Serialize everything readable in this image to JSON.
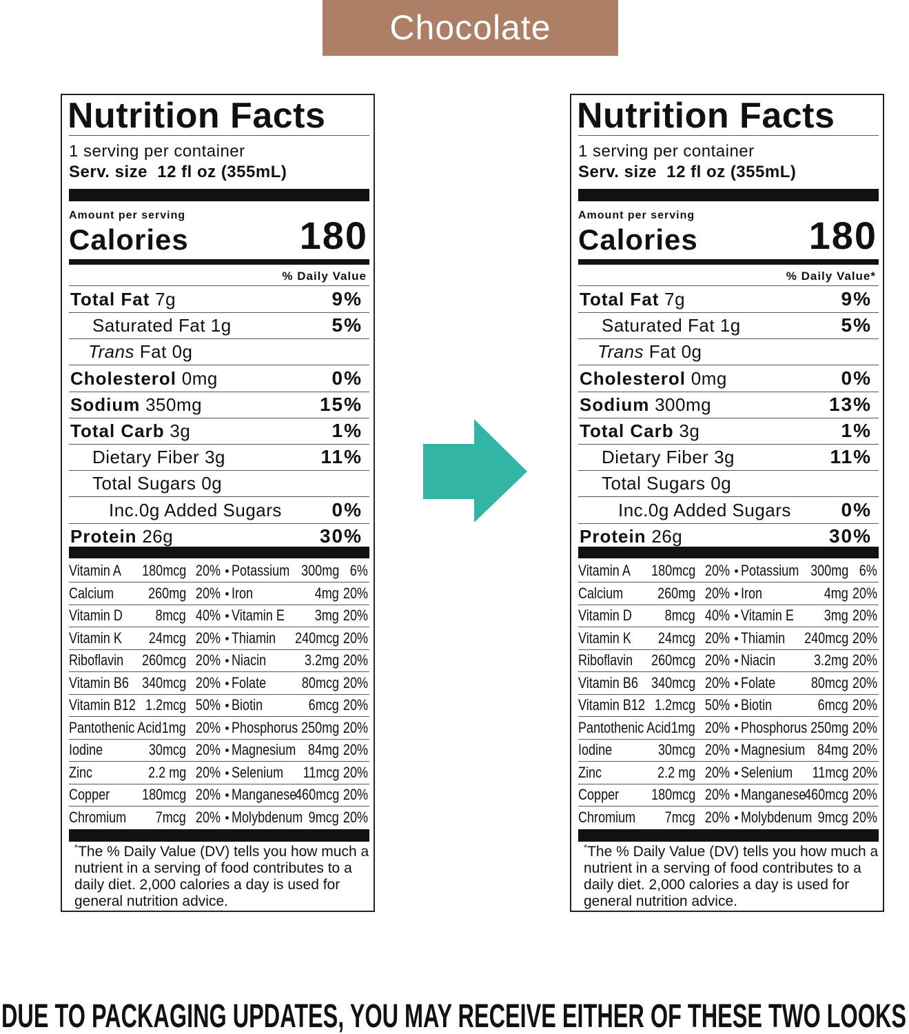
{
  "banner": "Chocolate",
  "labels": [
    {
      "title": "Nutrition Facts",
      "servings": "1 serving per container",
      "serving_size": "Serv. size  12 fl oz (355mL)",
      "amount_per_serving": "Amount per serving",
      "calories_label": "Calories",
      "calories": "180",
      "dv_header": "% Daily Value",
      "nutrients": [
        {
          "name": "Total Fat",
          "amount": "7g",
          "dv": "9%"
        },
        {
          "name": "Saturated Fat",
          "amount": "1g",
          "dv": "5%"
        },
        {
          "italic": "Trans",
          "name": "Fat",
          "amount": "0g"
        },
        {
          "name": "Cholesterol",
          "amount": "0mg",
          "dv": "0%"
        },
        {
          "name": "Sodium",
          "amount": "350mg",
          "dv": "15%"
        },
        {
          "name": "Total Carb",
          "amount": "3g",
          "dv": "1%"
        },
        {
          "name": "Dietary Fiber",
          "amount": "3g",
          "dv": "11%"
        },
        {
          "name": "Total Sugars",
          "amount": "0g"
        },
        {
          "name": "Inc.0g Added Sugars",
          "dv": "0%"
        },
        {
          "name": "Protein",
          "amount": "26g",
          "dv": "30%"
        }
      ],
      "micronutrients": [
        {
          "name": "Vitamin A",
          "amount": "180mcg",
          "dv": "20%"
        },
        {
          "name": "Potassium",
          "amount": "300mg",
          "dv": "6%"
        },
        {
          "name": "Calcium",
          "amount": "260mg",
          "dv": "20%"
        },
        {
          "name": "Iron",
          "amount": "4mg",
          "dv": "20%"
        },
        {
          "name": "Vitamin D",
          "amount": "8mcg",
          "dv": "40%"
        },
        {
          "name": "Vitamin E",
          "amount": "3mg",
          "dv": "20%"
        },
        {
          "name": "Vitamin K",
          "amount": "24mcg",
          "dv": "20%"
        },
        {
          "name": "Thiamin",
          "amount": "240mcg",
          "dv": "20%"
        },
        {
          "name": "Riboflavin",
          "amount": "260mcg",
          "dv": "20%"
        },
        {
          "name": "Niacin",
          "amount": "3.2mg",
          "dv": "20%"
        },
        {
          "name": "Vitamin B6",
          "amount": "340mcg",
          "dv": "20%"
        },
        {
          "name": "Folate",
          "amount": "80mcg",
          "dv": "20%"
        },
        {
          "name": "Vitamin B12",
          "amount": "1.2mcg",
          "dv": "50%"
        },
        {
          "name": "Biotin",
          "amount": "6mcg",
          "dv": "20%"
        },
        {
          "name": "Pantothenic Acid",
          "amount": "1mg",
          "dv": "20%"
        },
        {
          "name": "Phosphorus",
          "amount": "250mg",
          "dv": "20%"
        },
        {
          "name": "Iodine",
          "amount": "30mcg",
          "dv": "20%"
        },
        {
          "name": "Magnesium",
          "amount": "84mg",
          "dv": "20%"
        },
        {
          "name": "Zinc",
          "amount": "2.2 mg",
          "dv": "20%"
        },
        {
          "name": "Selenium",
          "amount": "11mcg",
          "dv": "20%"
        },
        {
          "name": "Copper",
          "amount": "180mcg",
          "dv": "20%"
        },
        {
          "name": "Manganese",
          "amount": "460mcg",
          "dv": "20%"
        },
        {
          "name": "Chromium",
          "amount": "7mcg",
          "dv": "20%"
        },
        {
          "name": "Molybdenum",
          "amount": "9mcg",
          "dv": "20%"
        }
      ],
      "footnote_mark": "*",
      "footnote": "The % Daily Value (DV) tells you how much a nutrient in a serving of food contributes to a daily diet. 2,000 calories a day is used for general nutrition advice."
    },
    {
      "title": "Nutrition Facts",
      "servings": "1 serving per container",
      "serving_size": "Serv. size  12 fl oz (355mL)",
      "amount_per_serving": "Amount per serving",
      "calories_label": "Calories",
      "calories": "180",
      "dv_header": "% Daily Value*",
      "nutrients": [
        {
          "name": "Total Fat",
          "amount": "7g",
          "dv": "9%"
        },
        {
          "name": "Saturated Fat",
          "amount": "1g",
          "dv": "5%"
        },
        {
          "italic": "Trans",
          "name": "Fat",
          "amount": "0g"
        },
        {
          "name": "Cholesterol",
          "amount": "0mg",
          "dv": "0%"
        },
        {
          "name": "Sodium",
          "amount": "300mg",
          "dv": "13%"
        },
        {
          "name": "Total Carb",
          "amount": "3g",
          "dv": "1%"
        },
        {
          "name": "Dietary Fiber",
          "amount": "3g",
          "dv": "11%"
        },
        {
          "name": "Total Sugars",
          "amount": "0g"
        },
        {
          "name": "Inc.0g Added Sugars",
          "dv": "0%"
        },
        {
          "name": "Protein",
          "amount": "26g",
          "dv": "30%"
        }
      ],
      "micronutrients": [
        {
          "name": "Vitamin A",
          "amount": "180mcg",
          "dv": "20%"
        },
        {
          "name": "Potassium",
          "amount": "300mg",
          "dv": "6%"
        },
        {
          "name": "Calcium",
          "amount": "260mg",
          "dv": "20%"
        },
        {
          "name": "Iron",
          "amount": "4mg",
          "dv": "20%"
        },
        {
          "name": "Vitamin D",
          "amount": "8mcg",
          "dv": "40%"
        },
        {
          "name": "Vitamin E",
          "amount": "3mg",
          "dv": "20%"
        },
        {
          "name": "Vitamin K",
          "amount": "24mcg",
          "dv": "20%"
        },
        {
          "name": "Thiamin",
          "amount": "240mcg",
          "dv": "20%"
        },
        {
          "name": "Riboflavin",
          "amount": "260mcg",
          "dv": "20%"
        },
        {
          "name": "Niacin",
          "amount": "3.2mg",
          "dv": "20%"
        },
        {
          "name": "Vitamin B6",
          "amount": "340mcg",
          "dv": "20%"
        },
        {
          "name": "Folate",
          "amount": "80mcg",
          "dv": "20%"
        },
        {
          "name": "Vitamin B12",
          "amount": "1.2mcg",
          "dv": "50%"
        },
        {
          "name": "Biotin",
          "amount": "6mcg",
          "dv": "20%"
        },
        {
          "name": "Pantothenic Acid",
          "amount": "1mg",
          "dv": "20%"
        },
        {
          "name": "Phosphorus",
          "amount": "250mg",
          "dv": "20%"
        },
        {
          "name": "Iodine",
          "amount": "30mcg",
          "dv": "20%"
        },
        {
          "name": "Magnesium",
          "amount": "84mg",
          "dv": "20%"
        },
        {
          "name": "Zinc",
          "amount": "2.2 mg",
          "dv": "20%"
        },
        {
          "name": "Selenium",
          "amount": "11mcg",
          "dv": "20%"
        },
        {
          "name": "Copper",
          "amount": "180mcg",
          "dv": "20%"
        },
        {
          "name": "Manganese",
          "amount": "460mcg",
          "dv": "20%"
        },
        {
          "name": "Chromium",
          "amount": "7mcg",
          "dv": "20%"
        },
        {
          "name": "Molybdenum",
          "amount": "9mcg",
          "dv": "20%"
        }
      ],
      "footnote_mark": "*",
      "footnote": "The % Daily Value (DV) tells you how much a nutrient in a serving of food contributes to a daily diet. 2,000 calories a day is used for general nutrition advice."
    }
  ],
  "footer": "DUE TO PACKAGING UPDATES, YOU MAY RECEIVE EITHER OF THESE TWO LOOKS"
}
